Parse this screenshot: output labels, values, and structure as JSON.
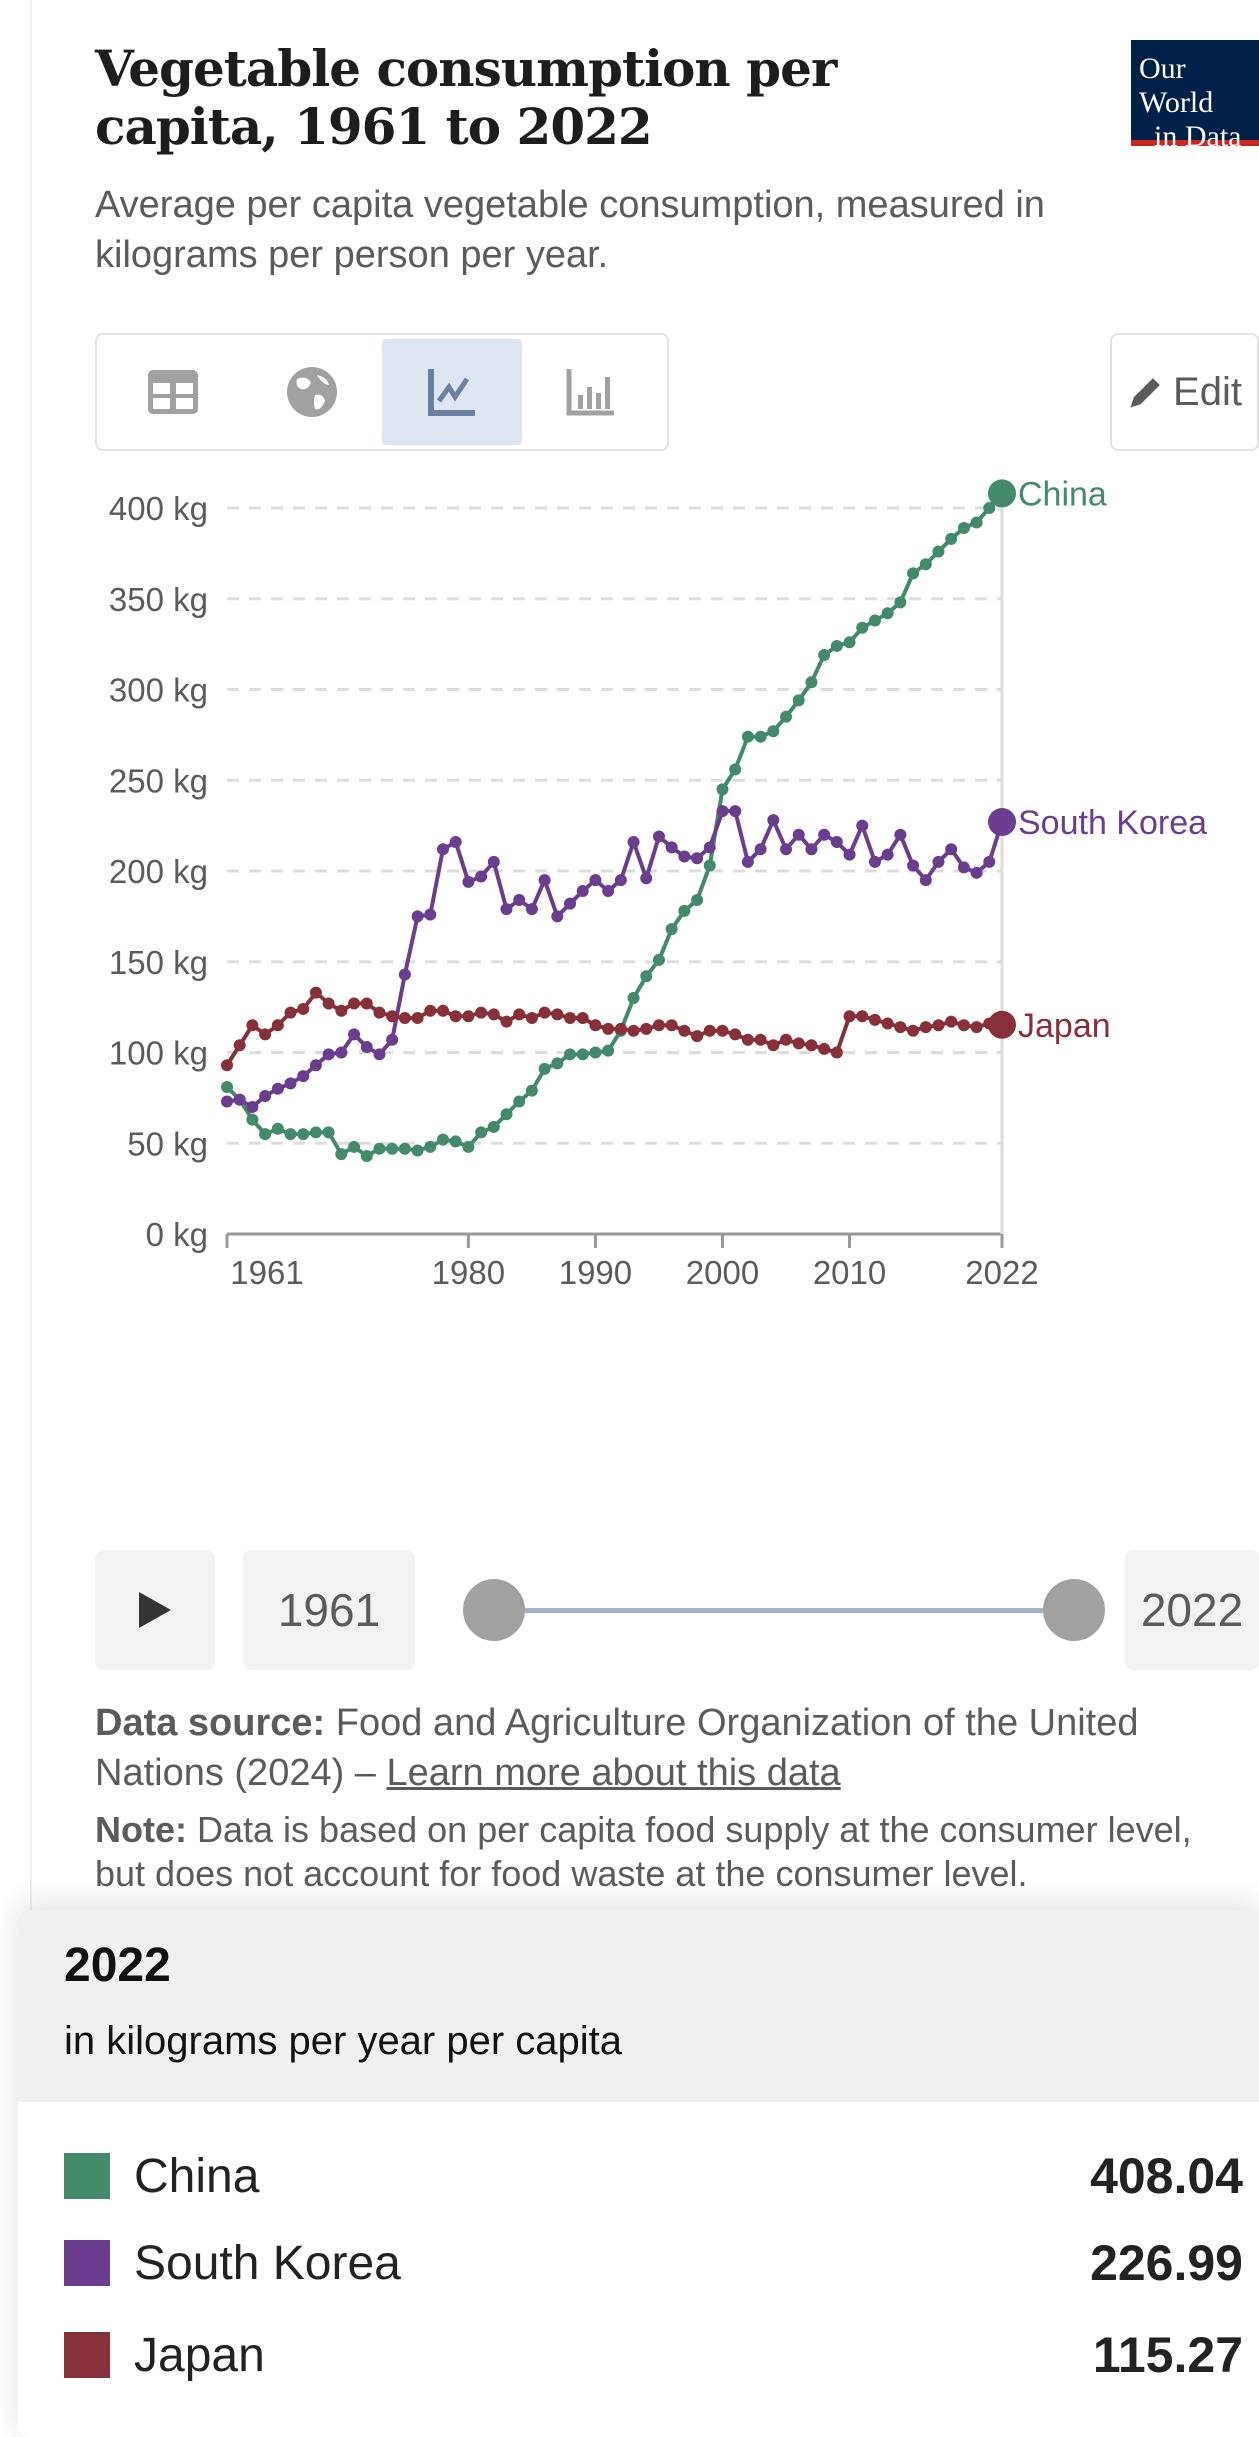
{
  "header": {
    "title": "Vegetable consumption per capita, 1961 to 2022",
    "subtitle": "Average per capita vegetable consumption, measured in kilograms per person per year.",
    "logo_text": "Our World in Data"
  },
  "toolbar": {
    "tabs": [
      {
        "icon": "table-icon",
        "active": false
      },
      {
        "icon": "globe-icon",
        "active": false
      },
      {
        "icon": "line-chart-icon",
        "active": true
      },
      {
        "icon": "bar-chart-icon",
        "active": false
      }
    ],
    "edit_label": "Edit"
  },
  "chart_data": {
    "type": "line",
    "title": "Vegetable consumption per capita, 1961 to 2022",
    "ylim": [
      0,
      400
    ],
    "y_ticks": [
      "0 kg",
      "50 kg",
      "100 kg",
      "150 kg",
      "200 kg",
      "250 kg",
      "300 kg",
      "350 kg",
      "400 kg"
    ],
    "y_tick_values": [
      0,
      50,
      100,
      150,
      200,
      250,
      300,
      350,
      400
    ],
    "x_ticks": [
      "1961",
      "1980",
      "1990",
      "2000",
      "2010",
      "2022"
    ],
    "x_tick_values": [
      1961,
      1980,
      1990,
      2000,
      2010,
      2022
    ],
    "xlim": [
      1961,
      2022
    ],
    "grid": "horizontal dashed",
    "legend": "inline-right",
    "series": [
      {
        "name": "China",
        "color": "#438a6a",
        "values": [
          81,
          74,
          63,
          55,
          58,
          55,
          55,
          56,
          56,
          44,
          48,
          43,
          47,
          47,
          47,
          46,
          48,
          52,
          51,
          48,
          56,
          59,
          66,
          73,
          79,
          91,
          94,
          99,
          99,
          100,
          101,
          112,
          130,
          142,
          151,
          168,
          178,
          184,
          203,
          245,
          256,
          274,
          274,
          277,
          285,
          294,
          304,
          319,
          324,
          326,
          334,
          338,
          342,
          348,
          364,
          369,
          376,
          383,
          389,
          392,
          400,
          408.04
        ]
      },
      {
        "name": "South Korea",
        "color": "#6a3d8f",
        "values": [
          73,
          74,
          70,
          76,
          80,
          83,
          87,
          93,
          99,
          100,
          110,
          103,
          99,
          107,
          143,
          175,
          176,
          212,
          216,
          194,
          197,
          205,
          179,
          184,
          179,
          195,
          175,
          182,
          189,
          195,
          189,
          195,
          216,
          196,
          219,
          213,
          208,
          207,
          213,
          233,
          233,
          205,
          212,
          228,
          212,
          220,
          212,
          220,
          216,
          209,
          225,
          205,
          209,
          220,
          203,
          195,
          205,
          212,
          202,
          199,
          205,
          226.99
        ]
      },
      {
        "name": "Japan",
        "color": "#883039",
        "values": [
          93,
          104,
          115,
          110,
          115,
          122,
          124,
          133,
          127,
          123,
          127,
          127,
          122,
          120,
          119,
          119,
          123,
          123,
          120,
          120,
          122,
          121,
          117,
          121,
          119,
          122,
          121,
          119,
          119,
          115,
          113,
          113,
          112,
          113,
          115,
          115,
          112,
          109,
          112,
          112,
          110,
          107,
          107,
          104,
          107,
          105,
          104,
          102,
          100,
          120,
          120,
          118,
          116,
          114,
          112,
          114,
          115,
          117,
          115,
          114,
          116,
          115.27
        ]
      }
    ]
  },
  "timeline": {
    "start_year": "1961",
    "end_year": "2022",
    "range_fraction": [
      0,
      1
    ]
  },
  "footer": {
    "source_label": "Data source:",
    "source_text": "Food and Agriculture Organization of the United Nations (2024) –",
    "source_link": "Learn more about this data",
    "note_label": "Note:",
    "note_text": "Data is based on per capita food supply at the consumer level, but does not account for food waste at the consumer level."
  },
  "tooltip": {
    "year": "2022",
    "unit": "in kilograms per year per capita",
    "rows": [
      {
        "name": "China",
        "value": "408.04",
        "color": "#438a6a"
      },
      {
        "name": "South Korea",
        "value": "226.99",
        "color": "#6a3d8f"
      },
      {
        "name": "Japan",
        "value": "115.27",
        "color": "#883039"
      }
    ]
  }
}
